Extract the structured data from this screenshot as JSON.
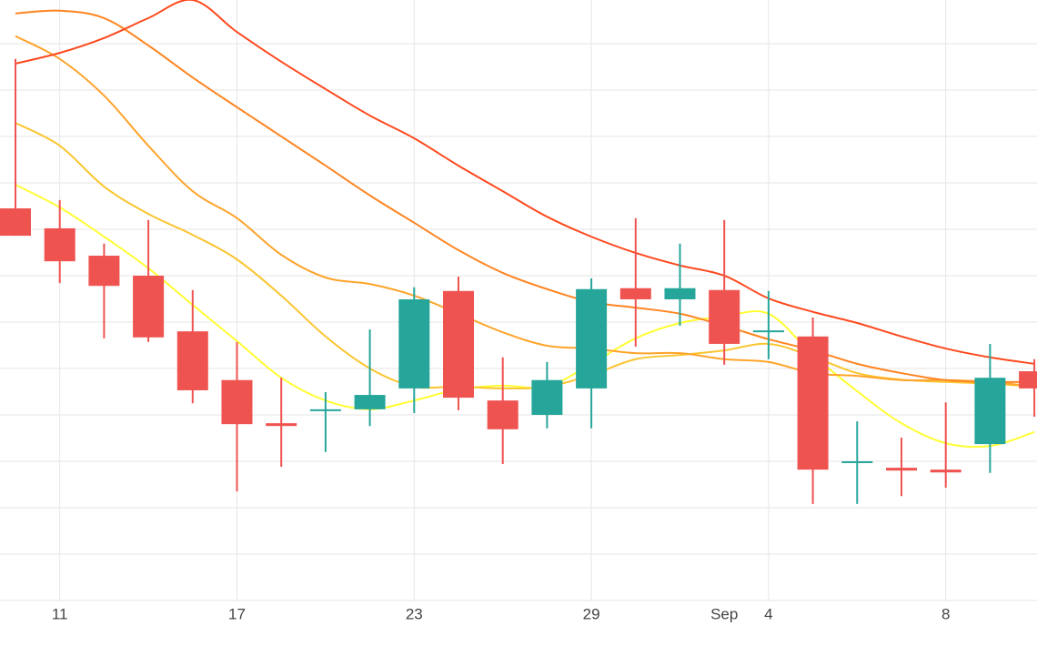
{
  "chart_data": {
    "type": "candlestick",
    "categories": [
      null,
      "11",
      null,
      null,
      null,
      "17",
      null,
      null,
      null,
      "23",
      null,
      null,
      null,
      "29",
      null,
      null,
      "Sep",
      "4",
      null,
      null,
      null,
      "8",
      null,
      null
    ],
    "open": [
      8.45,
      8.02,
      7.43,
      7.0,
      5.8,
      4.75,
      3.82,
      4.1,
      4.12,
      4.57,
      6.67,
      4.31,
      4.0,
      4.57,
      6.73,
      6.49,
      6.69,
      5.8,
      5.69,
      2.98,
      2.86,
      2.82,
      3.37,
      4.94
    ],
    "high": [
      11.67,
      8.63,
      7.69,
      8.2,
      6.69,
      5.57,
      4.8,
      4.49,
      5.84,
      6.75,
      6.98,
      5.24,
      5.14,
      6.94,
      8.24,
      7.69,
      8.2,
      6.67,
      6.1,
      3.86,
      3.51,
      4.27,
      5.53,
      5.2
    ],
    "low": [
      7.86,
      6.84,
      5.65,
      5.57,
      4.25,
      2.35,
      2.88,
      3.2,
      3.76,
      4.04,
      4.1,
      2.94,
      3.71,
      3.71,
      5.47,
      5.92,
      5.08,
      5.2,
      2.08,
      2.08,
      2.25,
      2.43,
      2.75,
      3.96
    ],
    "close": [
      7.86,
      7.31,
      6.78,
      5.67,
      4.53,
      3.8,
      3.76,
      4.12,
      4.43,
      6.49,
      4.37,
      3.69,
      4.75,
      6.71,
      6.49,
      6.73,
      5.53,
      5.82,
      2.82,
      3.0,
      2.8,
      2.76,
      4.8,
      4.57
    ],
    "increasing_color": "#26a69a",
    "decreasing_color": "#ef5350",
    "series": [
      {
        "color": "#ffff33",
        "values": [
          8.96,
          8.47,
          7.84,
          7.16,
          6.37,
          5.59,
          4.8,
          4.31,
          4.12,
          4.31,
          4.55,
          4.63,
          4.61,
          5.1,
          5.65,
          5.98,
          6.12,
          6.18,
          5.29,
          4.51,
          3.82,
          3.39,
          3.33,
          3.63
        ]
      },
      {
        "color": "#fbc531",
        "values": [
          10.29,
          9.8,
          8.92,
          8.33,
          7.88,
          7.35,
          6.57,
          5.69,
          5.0,
          4.61,
          4.61,
          4.57,
          4.61,
          4.86,
          5.2,
          5.29,
          5.39,
          5.53,
          5.25,
          4.9,
          4.76,
          4.71,
          4.67,
          4.61
        ]
      },
      {
        "color": "#ffa42b",
        "values": [
          12.16,
          11.67,
          10.88,
          9.8,
          8.82,
          8.24,
          7.45,
          6.96,
          6.82,
          6.57,
          6.18,
          5.78,
          5.49,
          5.43,
          5.33,
          5.33,
          5.2,
          5.14,
          4.9,
          4.84,
          4.75,
          4.75,
          4.71,
          4.61
        ]
      },
      {
        "color": "#ff8522",
        "values": [
          12.65,
          12.71,
          12.55,
          11.96,
          11.27,
          10.63,
          10.0,
          9.37,
          8.73,
          8.14,
          7.55,
          7.06,
          6.71,
          6.43,
          6.31,
          6.18,
          5.92,
          5.63,
          5.39,
          5.1,
          4.9,
          4.75,
          4.71,
          4.71
        ]
      },
      {
        "color": "#ff4a1f",
        "values": [
          11.57,
          11.8,
          12.12,
          12.55,
          12.94,
          12.25,
          11.61,
          11.02,
          10.45,
          9.96,
          9.37,
          8.82,
          8.27,
          7.84,
          7.49,
          7.22,
          7.0,
          6.51,
          6.22,
          5.98,
          5.69,
          5.43,
          5.24,
          5.1
        ]
      }
    ],
    "ylim": [
      0,
      12.94
    ],
    "yticks": [
      0,
      1,
      2,
      3,
      4,
      5,
      6,
      7,
      8,
      9,
      10,
      11,
      12
    ],
    "grid": true
  }
}
